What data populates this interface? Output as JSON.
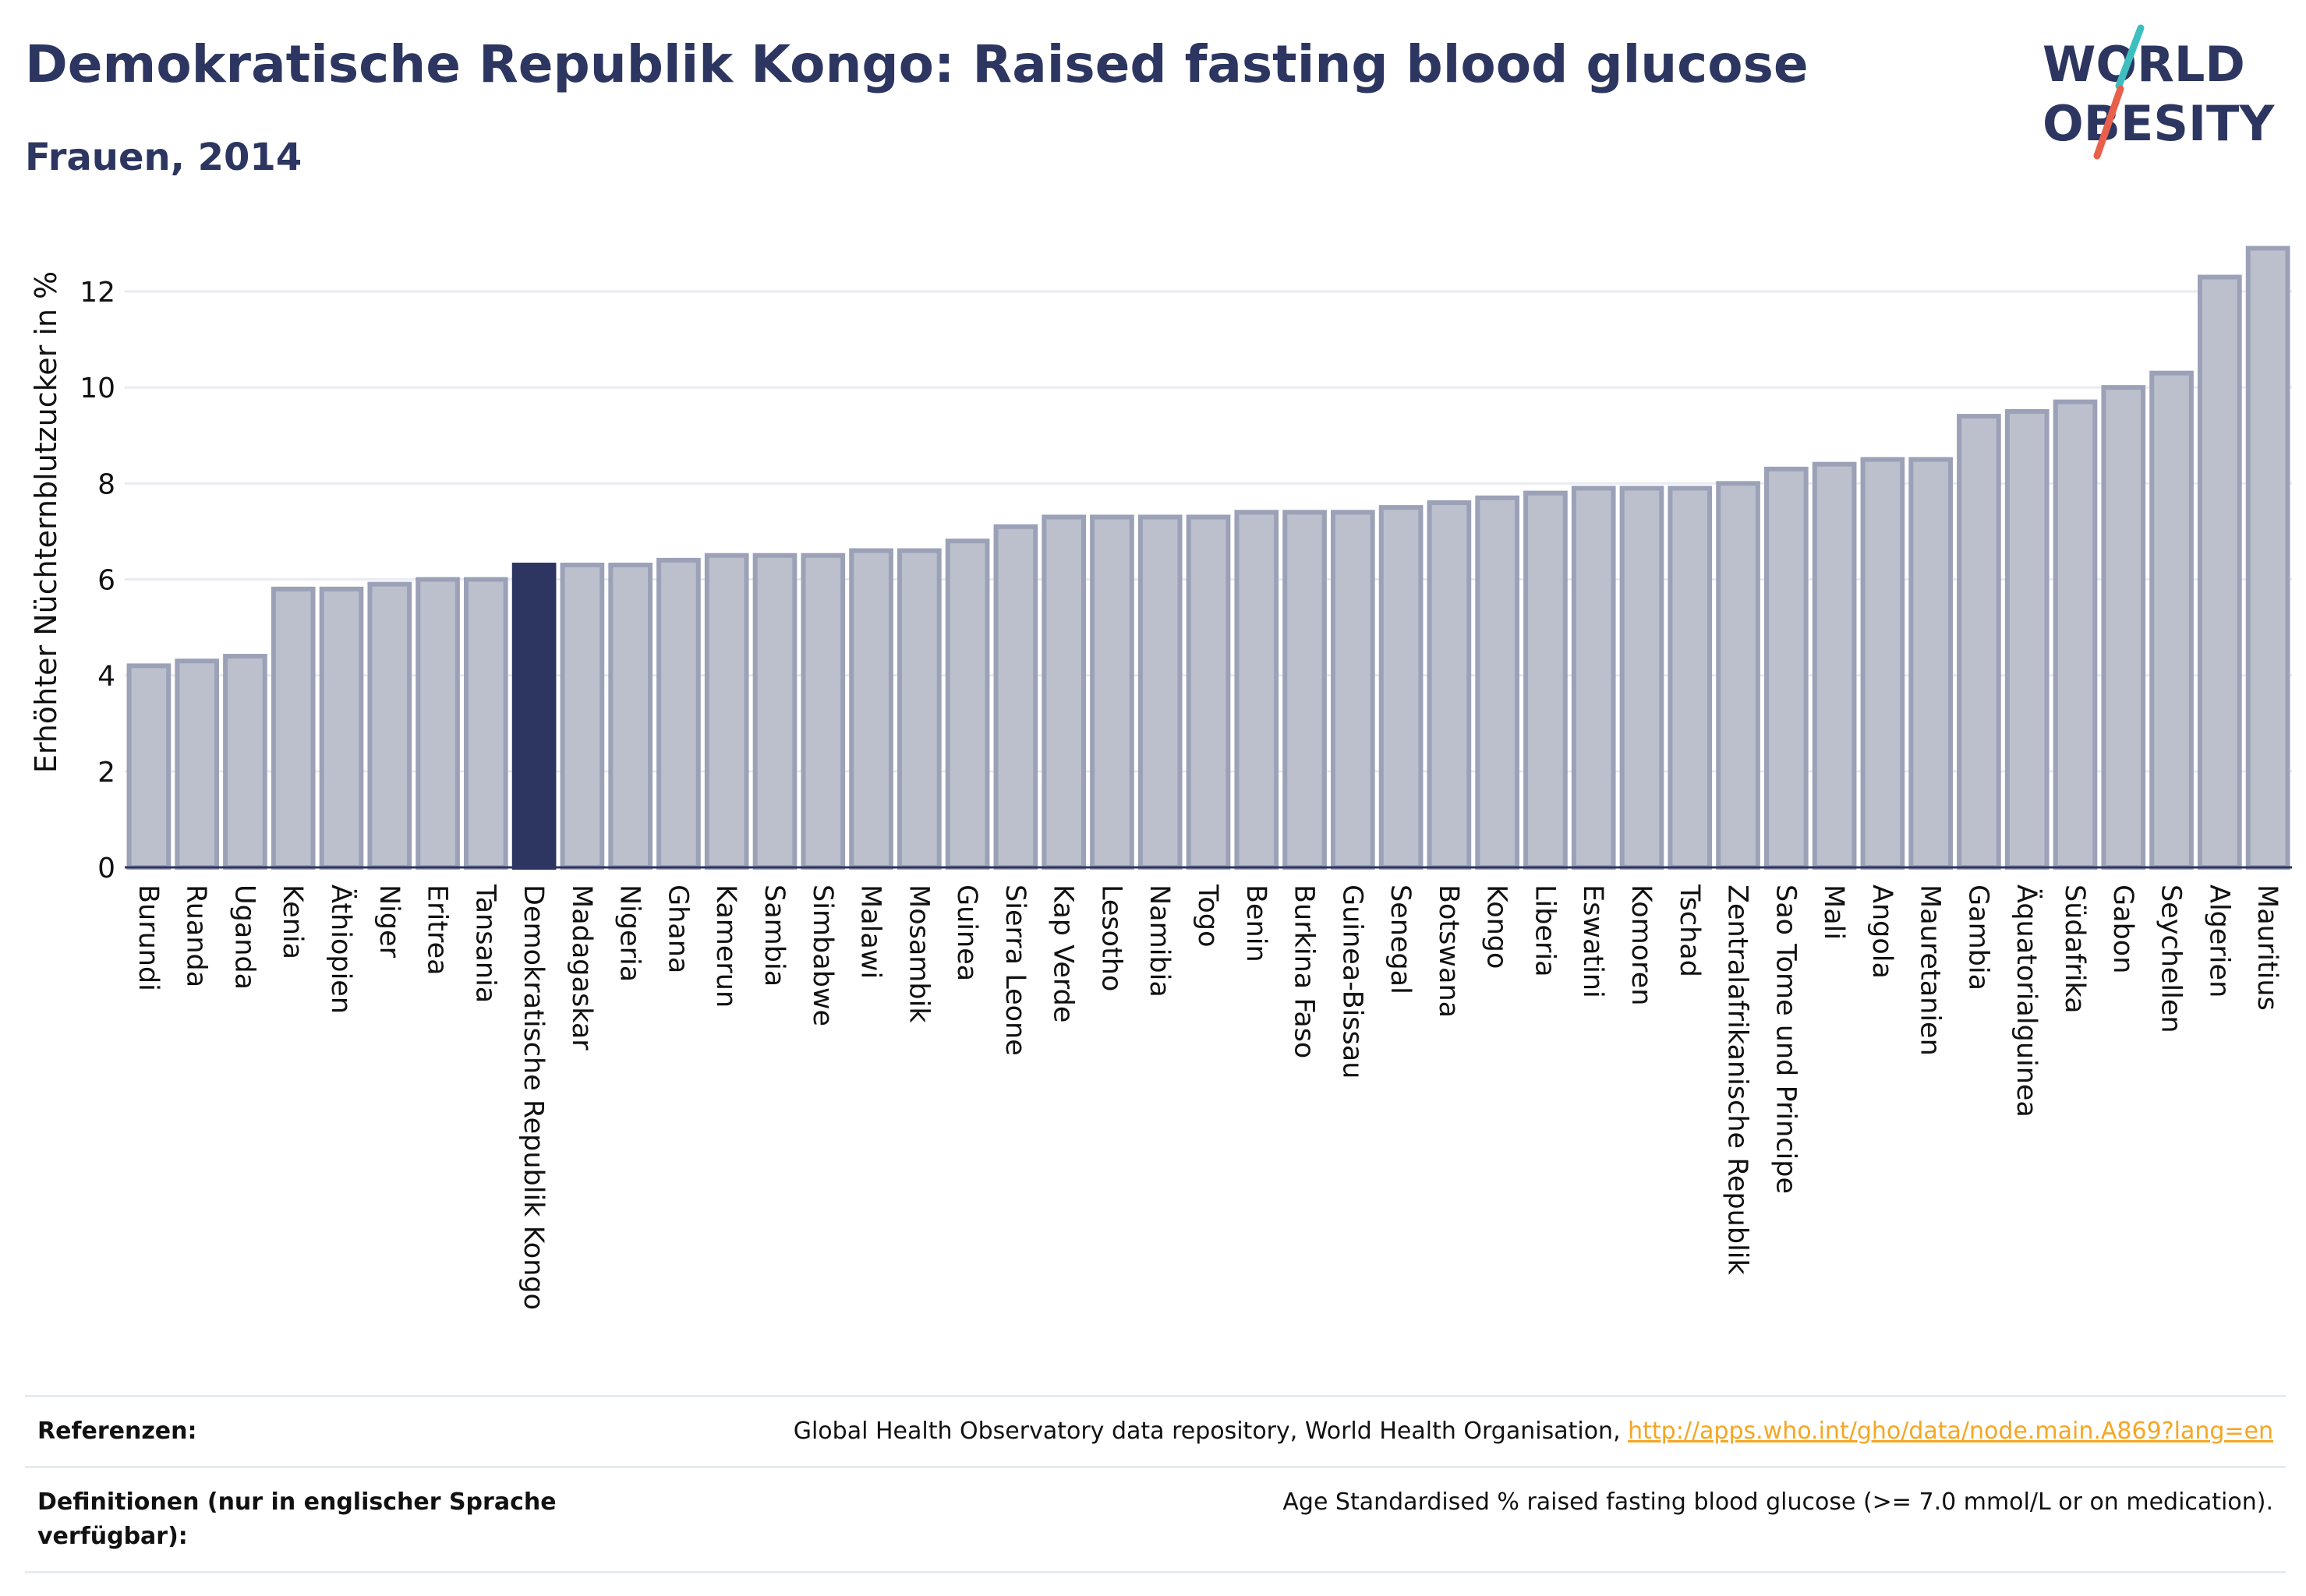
{
  "header": {
    "title": "Demokratische Republik Kongo: Raised fasting blood glucose",
    "subtitle": "Frauen, 2014"
  },
  "logo": {
    "line1": "WORLD",
    "line2": "OBESITY"
  },
  "colors": {
    "highlight": "#2c3660",
    "bar_fill": "#bcc0cd",
    "bar_stroke": "#9ba1b7",
    "grid": "#e9ebf0",
    "title": "#2c3660",
    "logo_teal": "#3dbfbf",
    "logo_red": "#e8604c",
    "link": "#f5a623"
  },
  "chart_data": {
    "type": "bar",
    "title": "Demokratische Republik Kongo: Raised fasting blood glucose",
    "subtitle": "Frauen, 2014",
    "xlabel": "",
    "ylabel": "Erhöhter Nüchternblutzucker in %",
    "ylim": [
      0,
      13
    ],
    "yticks": [
      0,
      2,
      4,
      6,
      8,
      10,
      12
    ],
    "grid": true,
    "highlight": "Demokratische Republik Kongo",
    "categories": [
      "Burundi",
      "Ruanda",
      "Uganda",
      "Kenia",
      "Äthiopien",
      "Niger",
      "Eritrea",
      "Tansania",
      "Demokratische Republik Kongo",
      "Madagaskar",
      "Nigeria",
      "Ghana",
      "Kamerun",
      "Sambia",
      "Simbabwe",
      "Malawi",
      "Mosambik",
      "Guinea",
      "Sierra Leone",
      "Kap Verde",
      "Lesotho",
      "Namibia",
      "Togo",
      "Benin",
      "Burkina Faso",
      "Guinea-Bissau",
      "Senegal",
      "Botswana",
      "Kongo",
      "Liberia",
      "Eswatini",
      "Komoren",
      "Tschad",
      "Zentralafrikanische Republik",
      "Sao Tome und Principe",
      "Mali",
      "Angola",
      "Mauretanien",
      "Gambia",
      "Äquatorialguinea",
      "Südafrika",
      "Gabon",
      "Seychellen",
      "Algerien",
      "Mauritius"
    ],
    "values": [
      4.2,
      4.3,
      4.4,
      5.8,
      5.8,
      5.9,
      6.0,
      6.0,
      6.3,
      6.3,
      6.3,
      6.4,
      6.5,
      6.5,
      6.5,
      6.6,
      6.6,
      6.8,
      7.1,
      7.3,
      7.3,
      7.3,
      7.3,
      7.4,
      7.4,
      7.4,
      7.5,
      7.6,
      7.7,
      7.8,
      7.9,
      7.9,
      7.9,
      8.0,
      8.3,
      8.4,
      8.5,
      8.5,
      9.4,
      9.5,
      9.7,
      10.0,
      10.3,
      12.3,
      12.9
    ]
  },
  "references": {
    "label": "Referenzen:",
    "text": "Global Health Observatory data repository, World Health Organisation, ",
    "link": "http://apps.who.int/gho/data/node.main.A869?lang=en"
  },
  "definitions": {
    "label": "Definitionen (nur in englischer Sprache verfügbar):",
    "text": "Age Standardised % raised fasting blood glucose (>= 7.0 mmol/L or on medication)."
  }
}
